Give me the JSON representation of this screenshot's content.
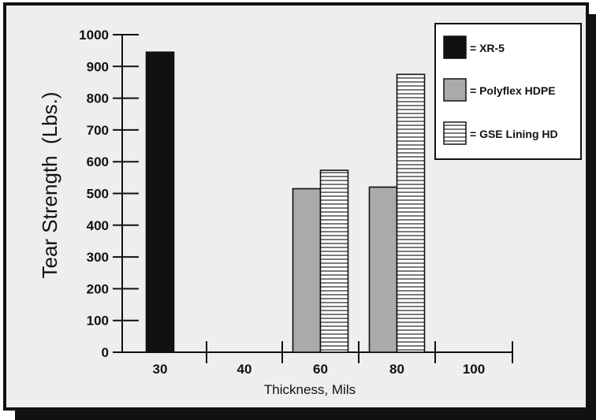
{
  "chart_data": {
    "type": "bar",
    "xlabel": "Thickness, Mils",
    "ylabel": "Tear Strength  (Lbs.)",
    "categories": [
      "30",
      "40",
      "60",
      "80",
      "100"
    ],
    "ylim": [
      0,
      1000
    ],
    "yticks": [
      "0",
      "100",
      "200",
      "300",
      "400",
      "500",
      "600",
      "700",
      "800",
      "900",
      "1000"
    ],
    "series": [
      {
        "name": "= XR-5",
        "color": "#111111",
        "pattern": "solid",
        "values": [
          945,
          null,
          null,
          null,
          null
        ]
      },
      {
        "name": "= Polyflex HDPE",
        "color": "#aaaaaa",
        "pattern": "solid",
        "values": [
          null,
          null,
          515,
          520,
          null
        ]
      },
      {
        "name": "= GSE Lining HD",
        "color": "#ffffff",
        "pattern": "horizontal-stripes",
        "values": [
          null,
          null,
          573,
          875,
          null
        ]
      }
    ],
    "legend_position": "top-right",
    "grid": false
  }
}
